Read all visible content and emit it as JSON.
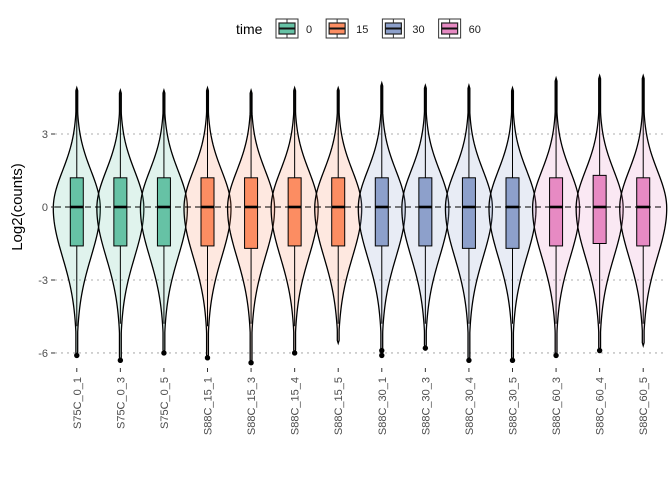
{
  "chart_data": {
    "type": "violin",
    "ylabel": "Log2(counts)",
    "xlabel": "",
    "ylim": [
      -6.9,
      5.6
    ],
    "yticks": [
      -6,
      -3,
      0,
      3
    ],
    "ytick_labels": [
      "-6",
      "-3",
      "0",
      "3"
    ],
    "grid": "dotted horizontal at y ticks",
    "reference_line": {
      "y": 0,
      "style": "dashed"
    },
    "legend": {
      "title": "time",
      "position": "top",
      "entries": [
        {
          "label": "0",
          "color": "#66c2a5"
        },
        {
          "label": "15",
          "color": "#fc8d62"
        },
        {
          "label": "30",
          "color": "#8da0cb"
        },
        {
          "label": "60",
          "color": "#e78ac3"
        }
      ]
    },
    "categories": [
      "S75C_0_1",
      "S75C_0_3",
      "S75C_0_5",
      "S88C_15_1",
      "S88C_15_3",
      "S88C_15_4",
      "S88C_15_5",
      "S88C_30_1",
      "S88C_30_3",
      "S88C_30_4",
      "S88C_30_5",
      "S88C_60_3",
      "S88C_60_4",
      "S88C_60_5"
    ],
    "groups": [
      "0",
      "0",
      "0",
      "15",
      "15",
      "15",
      "15",
      "30",
      "30",
      "30",
      "30",
      "60",
      "60",
      "60"
    ],
    "series": [
      {
        "name": "S75C_0_1",
        "group": "0",
        "min": -6.1,
        "max": 4.9,
        "q1": -1.6,
        "median": 0.0,
        "q3": 1.2,
        "whisker_low": -4.9,
        "whisker_high": 4.9,
        "outliers": [
          -6.1
        ]
      },
      {
        "name": "S75C_0_3",
        "group": "0",
        "min": -6.3,
        "max": 4.8,
        "q1": -1.6,
        "median": 0.0,
        "q3": 1.2,
        "whisker_low": -4.8,
        "whisker_high": 4.8,
        "outliers": [
          -6.3
        ]
      },
      {
        "name": "S75C_0_5",
        "group": "0",
        "min": -6.0,
        "max": 4.8,
        "q1": -1.6,
        "median": 0.0,
        "q3": 1.2,
        "whisker_low": -4.8,
        "whisker_high": 4.8,
        "outliers": [
          -6.0
        ]
      },
      {
        "name": "S88C_15_1",
        "group": "15",
        "min": -6.2,
        "max": 4.9,
        "q1": -1.6,
        "median": 0.0,
        "q3": 1.2,
        "whisker_low": -4.9,
        "whisker_high": 4.9,
        "outliers": [
          -6.2
        ]
      },
      {
        "name": "S88C_15_3",
        "group": "15",
        "min": -6.4,
        "max": 4.8,
        "q1": -1.7,
        "median": 0.0,
        "q3": 1.2,
        "whisker_low": -4.8,
        "whisker_high": 4.8,
        "outliers": [
          -6.4
        ]
      },
      {
        "name": "S88C_15_4",
        "group": "15",
        "min": -6.0,
        "max": 4.9,
        "q1": -1.6,
        "median": 0.0,
        "q3": 1.2,
        "whisker_low": -4.9,
        "whisker_high": 4.9,
        "outliers": [
          -6.0
        ]
      },
      {
        "name": "S88C_15_5",
        "group": "15",
        "min": -5.6,
        "max": 4.9,
        "q1": -1.6,
        "median": 0.0,
        "q3": 1.2,
        "whisker_low": -4.8,
        "whisker_high": 4.9,
        "outliers": []
      },
      {
        "name": "S88C_30_1",
        "group": "30",
        "min": -6.1,
        "max": 5.1,
        "q1": -1.6,
        "median": 0.0,
        "q3": 1.2,
        "whisker_low": -4.8,
        "whisker_high": 5.1,
        "outliers": [
          -5.9,
          -6.1
        ]
      },
      {
        "name": "S88C_30_3",
        "group": "30",
        "min": -5.8,
        "max": 5.0,
        "q1": -1.6,
        "median": 0.0,
        "q3": 1.2,
        "whisker_low": -4.8,
        "whisker_high": 5.0,
        "outliers": [
          -5.8
        ]
      },
      {
        "name": "S88C_30_4",
        "group": "30",
        "min": -6.3,
        "max": 5.0,
        "q1": -1.7,
        "median": 0.0,
        "q3": 1.2,
        "whisker_low": -4.8,
        "whisker_high": 5.0,
        "outliers": [
          -6.3
        ]
      },
      {
        "name": "S88C_30_5",
        "group": "30",
        "min": -6.3,
        "max": 4.9,
        "q1": -1.7,
        "median": 0.0,
        "q3": 1.2,
        "whisker_low": -4.8,
        "whisker_high": 4.9,
        "outliers": [
          -6.3
        ]
      },
      {
        "name": "S88C_60_3",
        "group": "60",
        "min": -6.1,
        "max": 5.3,
        "q1": -1.6,
        "median": 0.0,
        "q3": 1.2,
        "whisker_low": -4.8,
        "whisker_high": 5.3,
        "outliers": [
          -6.1
        ]
      },
      {
        "name": "S88C_60_4",
        "group": "60",
        "min": -5.9,
        "max": 5.4,
        "q1": -1.5,
        "median": 0.0,
        "q3": 1.3,
        "whisker_low": -4.8,
        "whisker_high": 5.4,
        "outliers": [
          -5.9
        ]
      },
      {
        "name": "S88C_60_5",
        "group": "60",
        "min": -5.7,
        "max": 5.4,
        "q1": -1.6,
        "median": 0.0,
        "q3": 1.2,
        "whisker_low": -4.8,
        "whisker_high": 5.4,
        "outliers": []
      }
    ]
  }
}
